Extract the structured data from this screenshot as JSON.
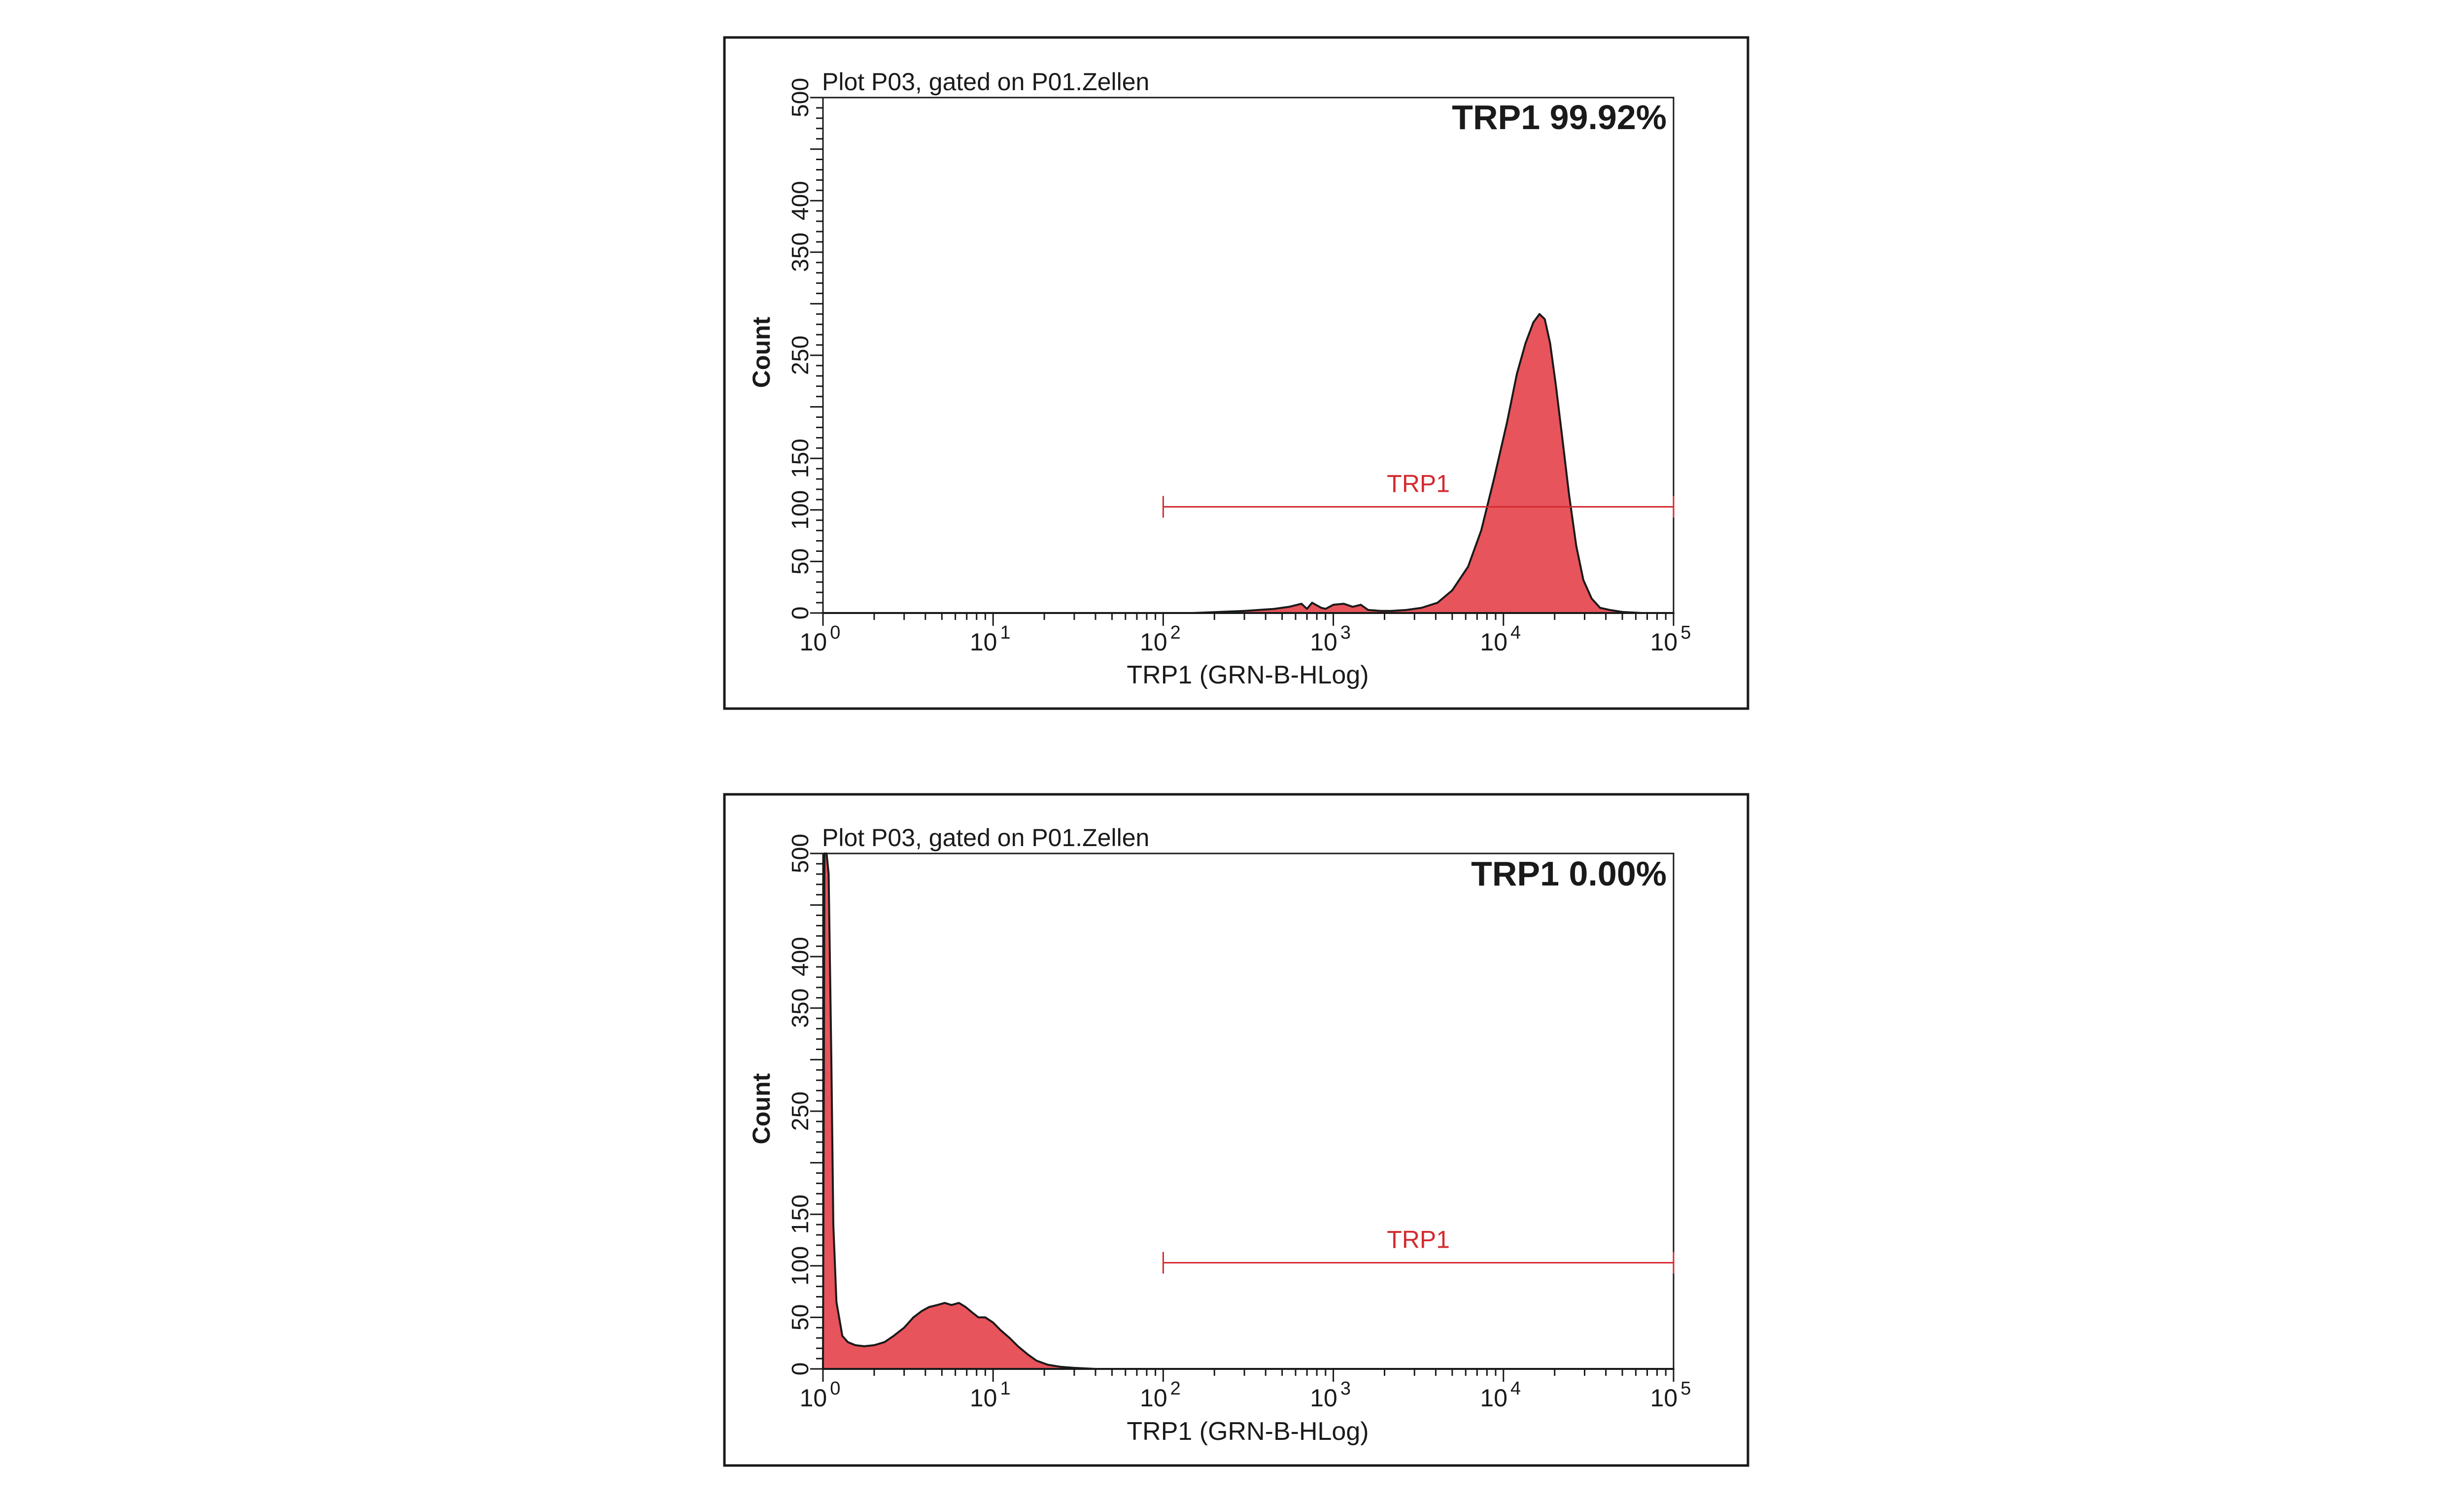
{
  "chart_data": [
    {
      "type": "area",
      "title": "Plot P03, gated on P01.Zellen",
      "ylabel": "Count",
      "xlabel": "TRP1 (GRN-B-HLog)",
      "x_scale": "log",
      "xlim": [
        1,
        100000
      ],
      "ylim": [
        0,
        500
      ],
      "y_ticks": [
        "0",
        "50",
        "100",
        "150",
        "250",
        "350",
        "400",
        "500"
      ],
      "x_ticks": [
        {
          "base": "10",
          "exp": "0"
        },
        {
          "base": "10",
          "exp": "1"
        },
        {
          "base": "10",
          "exp": "2"
        },
        {
          "base": "10",
          "exp": "3"
        },
        {
          "base": "10",
          "exp": "4"
        },
        {
          "base": "10",
          "exp": "5"
        }
      ],
      "stat_label": "TRP1 99.92%",
      "gate": {
        "label": "TRP1",
        "x_start": 100,
        "x_end": 100000,
        "y": 103
      },
      "series": [
        {
          "name": "TRP1",
          "x": [
            1,
            150,
            300,
            450,
            550,
            650,
            700,
            750,
            850,
            900,
            1000,
            1150,
            1300,
            1450,
            1600,
            1900,
            2200,
            2700,
            3300,
            4100,
            5000,
            6200,
            7400,
            8800,
            10500,
            12000,
            13500,
            15000,
            16300,
            17500,
            18800,
            20300,
            22100,
            24300,
            26800,
            29500,
            33000,
            37000,
            42000,
            50000,
            65000,
            100000
          ],
          "values": [
            0,
            0,
            2,
            4,
            6,
            9,
            4,
            10,
            5,
            4,
            8,
            9,
            6,
            8,
            3,
            2,
            2,
            3,
            5,
            10,
            22,
            45,
            80,
            130,
            185,
            232,
            262,
            282,
            290,
            285,
            262,
            222,
            172,
            115,
            65,
            32,
            14,
            5,
            3,
            1,
            0,
            0
          ]
        }
      ]
    },
    {
      "type": "area",
      "title": "Plot P03, gated on P01.Zellen",
      "ylabel": "Count",
      "xlabel": "TRP1 (GRN-B-HLog)",
      "x_scale": "log",
      "xlim": [
        1,
        100000
      ],
      "ylim": [
        0,
        500
      ],
      "y_ticks": [
        "0",
        "50",
        "100",
        "150",
        "250",
        "350",
        "400",
        "500"
      ],
      "x_ticks": [
        {
          "base": "10",
          "exp": "0"
        },
        {
          "base": "10",
          "exp": "1"
        },
        {
          "base": "10",
          "exp": "2"
        },
        {
          "base": "10",
          "exp": "3"
        },
        {
          "base": "10",
          "exp": "4"
        },
        {
          "base": "10",
          "exp": "5"
        }
      ],
      "stat_label": "TRP1 0.00%",
      "gate": {
        "label": "TRP1",
        "x_start": 100,
        "x_end": 100000,
        "y": 103
      },
      "series": [
        {
          "name": "TRP1",
          "x": [
            1,
            1.02,
            1.05,
            1.08,
            1.12,
            1.15,
            1.2,
            1.3,
            1.4,
            1.55,
            1.75,
            2,
            2.3,
            2.6,
            3,
            3.4,
            3.8,
            4.2,
            4.7,
            5.2,
            5.7,
            6.3,
            6.9,
            7.5,
            8.2,
            9,
            10,
            11,
            12.5,
            14,
            16,
            18,
            21,
            25,
            30,
            40,
            100,
            100000
          ],
          "values": [
            0,
            520,
            520,
            480,
            300,
            140,
            65,
            32,
            26,
            23,
            22,
            23,
            26,
            32,
            40,
            50,
            56,
            60,
            62,
            64,
            62,
            64,
            60,
            55,
            50,
            50,
            45,
            38,
            30,
            22,
            14,
            8,
            4,
            2,
            1,
            0,
            0,
            0
          ]
        }
      ]
    }
  ],
  "colors": {
    "fill": "#e8545b",
    "gate": "#d42a30",
    "axis": "#1a1a1a"
  }
}
